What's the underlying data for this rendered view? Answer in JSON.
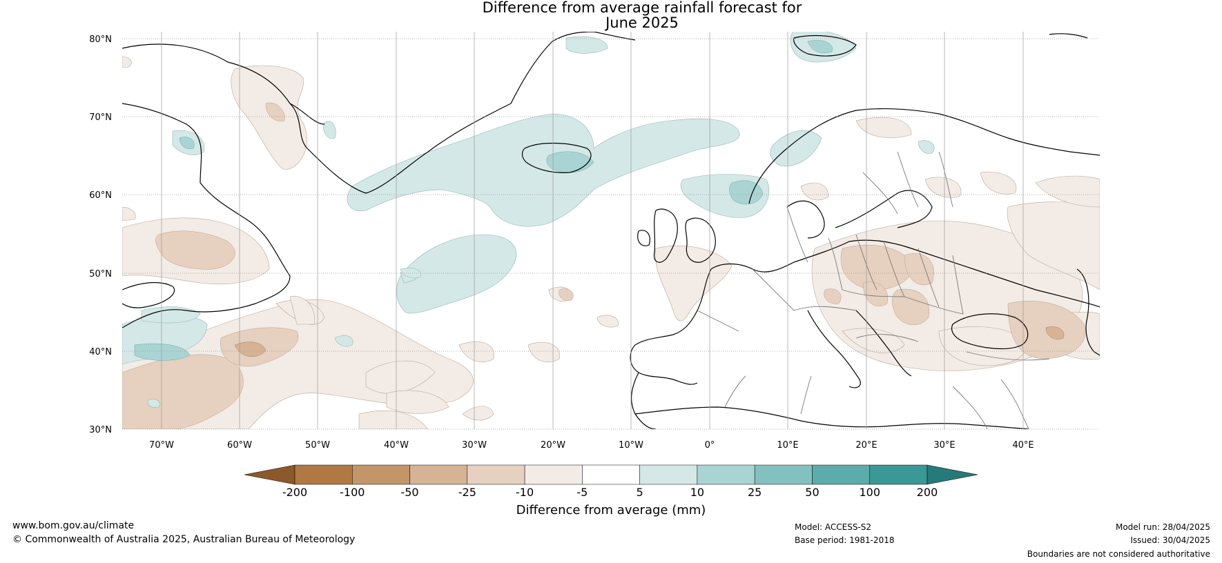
{
  "title": {
    "line1": "Difference from average rainfall forecast for",
    "line2": "June 2025"
  },
  "axes": {
    "lat_labels": [
      "80°N",
      "70°N",
      "60°N",
      "50°N",
      "40°N",
      "30°N"
    ],
    "lon_labels": [
      "70°W",
      "60°W",
      "50°W",
      "40°W",
      "30°W",
      "20°W",
      "10°W",
      "0°",
      "10°E",
      "20°E",
      "30°E",
      "40°E"
    ]
  },
  "colorbar": {
    "ticks": [
      "-200",
      "-100",
      "-50",
      "-25",
      "-10",
      "-5",
      "5",
      "10",
      "25",
      "50",
      "100",
      "200"
    ],
    "colors": [
      "#8c5a2a",
      "#b07843",
      "#c49568",
      "#d5b394",
      "#e6d0bf",
      "#f3ebe5",
      "#ffffff",
      "#d4e8e7",
      "#a9d4d3",
      "#82c1bf",
      "#5bacaa",
      "#3a9896",
      "#267a7a"
    ],
    "label": "Difference from average (mm)"
  },
  "footer": {
    "website": "www.bom.gov.au/climate",
    "copyright": "© Commonwealth of Australia 2025, Australian Bureau of Meteorology",
    "model": "Model: ACCESS-S2",
    "base_period": "Base period: 1981-2018",
    "model_run": "Model run: 28/04/2025",
    "issued": "Issued: 30/04/2025",
    "disclaimer": "Boundaries are not considered authoritative"
  }
}
